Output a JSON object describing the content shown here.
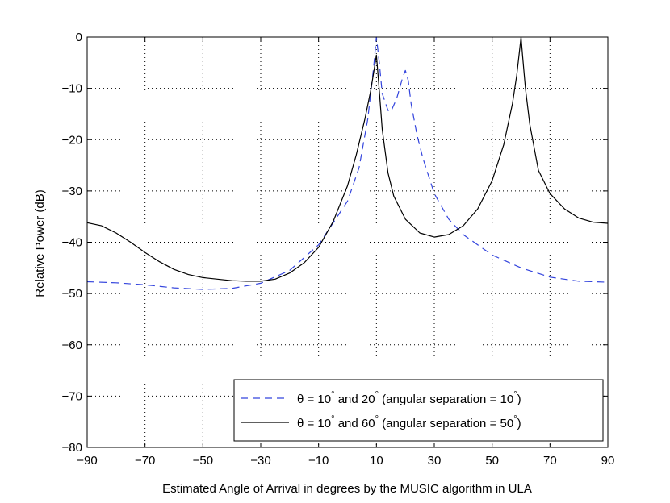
{
  "chart_data": {
    "type": "line",
    "title": "",
    "xlabel": "Estimated Angle of Arrival in degrees by the MUSIC algorithm in ULA",
    "ylabel": "Relative Power (dB)",
    "xlim": [
      -90,
      90
    ],
    "ylim": [
      -80,
      0
    ],
    "xticks": [
      -90,
      -70,
      -50,
      -30,
      -10,
      10,
      30,
      50,
      70,
      90
    ],
    "xtick_labels": [
      "−90",
      "−70",
      "−50",
      "−30",
      "−10",
      "10",
      "30",
      "50",
      "70",
      "90"
    ],
    "yticks": [
      0,
      -10,
      -20,
      -30,
      -40,
      -50,
      -60,
      -70,
      -80
    ],
    "ytick_labels": [
      "0",
      "−10",
      "−20",
      "−30",
      "−40",
      "−50",
      "−60",
      "−70",
      "−80"
    ],
    "grid": true,
    "legend_position": "bottom-right",
    "series": [
      {
        "name": "θ = 10° and 20° (angular separation = 10°)",
        "label_parts": {
          "prefix": "θ = 10",
          "mid": " and 20",
          "tail": " (angular separation  = 10",
          "end": ")"
        },
        "style": "dashed",
        "color": "#3344dd",
        "x": [
          -90,
          -80,
          -70,
          -60,
          -50,
          -40,
          -30,
          -20,
          -10,
          0,
          4,
          7,
          9,
          10,
          11,
          12,
          14,
          15,
          17,
          19,
          20,
          21,
          22,
          24,
          26,
          28,
          30,
          35,
          40,
          45,
          50,
          60,
          70,
          80,
          90
        ],
        "y": [
          -47.7,
          -47.9,
          -48.3,
          -48.9,
          -49.2,
          -49.0,
          -48.0,
          -45.5,
          -40.5,
          -32.0,
          -25.5,
          -16.0,
          -6.0,
          0.0,
          -5.0,
          -11.0,
          -14.3,
          -14.5,
          -12.0,
          -8.0,
          -6.5,
          -8.5,
          -13.0,
          -19.0,
          -23.5,
          -27.0,
          -30.5,
          -35.5,
          -38.5,
          -40.5,
          -42.5,
          -45.0,
          -46.8,
          -47.6,
          -47.8
        ]
      },
      {
        "name": "θ = 10° and 60° (angular separation = 50°)",
        "label_parts": {
          "prefix": "θ = 10",
          "mid": " and 60",
          "tail": " (angular separation  = 50",
          "end": ")"
        },
        "style": "solid",
        "color": "#000000",
        "x": [
          -90,
          -85,
          -80,
          -75,
          -70,
          -65,
          -60,
          -55,
          -50,
          -45,
          -40,
          -35,
          -30,
          -25,
          -20,
          -15,
          -10,
          -5,
          0,
          3,
          6,
          8,
          9,
          10,
          11,
          12,
          14,
          16,
          20,
          25,
          30,
          35,
          40,
          45,
          50,
          54,
          57,
          58.5,
          59.5,
          60,
          60.5,
          61.5,
          63,
          66,
          70,
          75,
          80,
          85,
          90
        ],
        "y": [
          -36.2,
          -36.8,
          -38.2,
          -40.0,
          -42.0,
          -43.8,
          -45.3,
          -46.3,
          -46.9,
          -47.2,
          -47.5,
          -47.6,
          -47.6,
          -47.2,
          -46.0,
          -44.0,
          -41.0,
          -36.0,
          -29.0,
          -23.0,
          -16.0,
          -10.5,
          -7.0,
          -3.5,
          -10.5,
          -18.0,
          -26.5,
          -31.0,
          -35.5,
          -38.2,
          -39.0,
          -38.5,
          -36.8,
          -33.5,
          -28.0,
          -21.0,
          -13.0,
          -7.5,
          -2.5,
          0.0,
          -3.5,
          -10.0,
          -17.0,
          -26.0,
          -30.5,
          -33.5,
          -35.3,
          -36.1,
          -36.3
        ]
      }
    ]
  }
}
